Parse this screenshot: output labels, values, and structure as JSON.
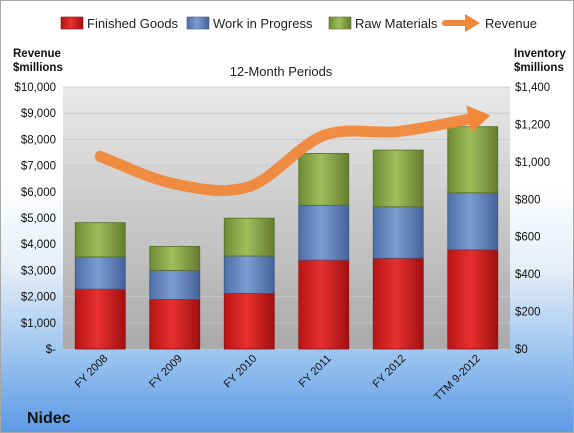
{
  "chart_data": {
    "type": "bar",
    "title": "12-Month Periods",
    "company": "Nidec",
    "categories": [
      "FY 2008",
      "FY 2009",
      "FY 2010",
      "FY 2011",
      "FY 2012",
      "TTM 9-2012"
    ],
    "series": [
      {
        "name": "Finished Goods",
        "type": "stacked-bar",
        "axis": "right",
        "color": "#e02020",
        "values": [
          320,
          265,
          297,
          475,
          485,
          530
        ]
      },
      {
        "name": "Work in Progress",
        "type": "stacked-bar",
        "axis": "right",
        "color": "#6f93c8",
        "values": [
          172,
          155,
          200,
          293,
          275,
          305
        ]
      },
      {
        "name": "Raw Materials",
        "type": "stacked-bar",
        "axis": "right",
        "color": "#9bbb59",
        "values": [
          183,
          128,
          202,
          277,
          303,
          353
        ]
      },
      {
        "name": "Revenue",
        "type": "line",
        "axis": "left",
        "color": "#f0883a",
        "values": [
          7350,
          6300,
          6200,
          8150,
          8300,
          8800
        ]
      }
    ],
    "left_axis": {
      "label_line1": "Revenue",
      "label_line2": "$millions",
      "min": 0,
      "max": 10000,
      "step": 1000,
      "ticks": [
        "$-",
        "$1,000",
        "$2,000",
        "$3,000",
        "$4,000",
        "$5,000",
        "$6,000",
        "$7,000",
        "$8,000",
        "$9,000",
        "$10,000"
      ]
    },
    "right_axis": {
      "label_line1": "Inventory",
      "label_line2": "$millions",
      "min": 0,
      "max": 1400,
      "step": 200,
      "ticks": [
        "$0",
        "$200",
        "$400",
        "$600",
        "$800",
        "$1,000",
        "$1,200",
        "$1,400"
      ]
    },
    "legend_position": "top",
    "grid": true
  }
}
